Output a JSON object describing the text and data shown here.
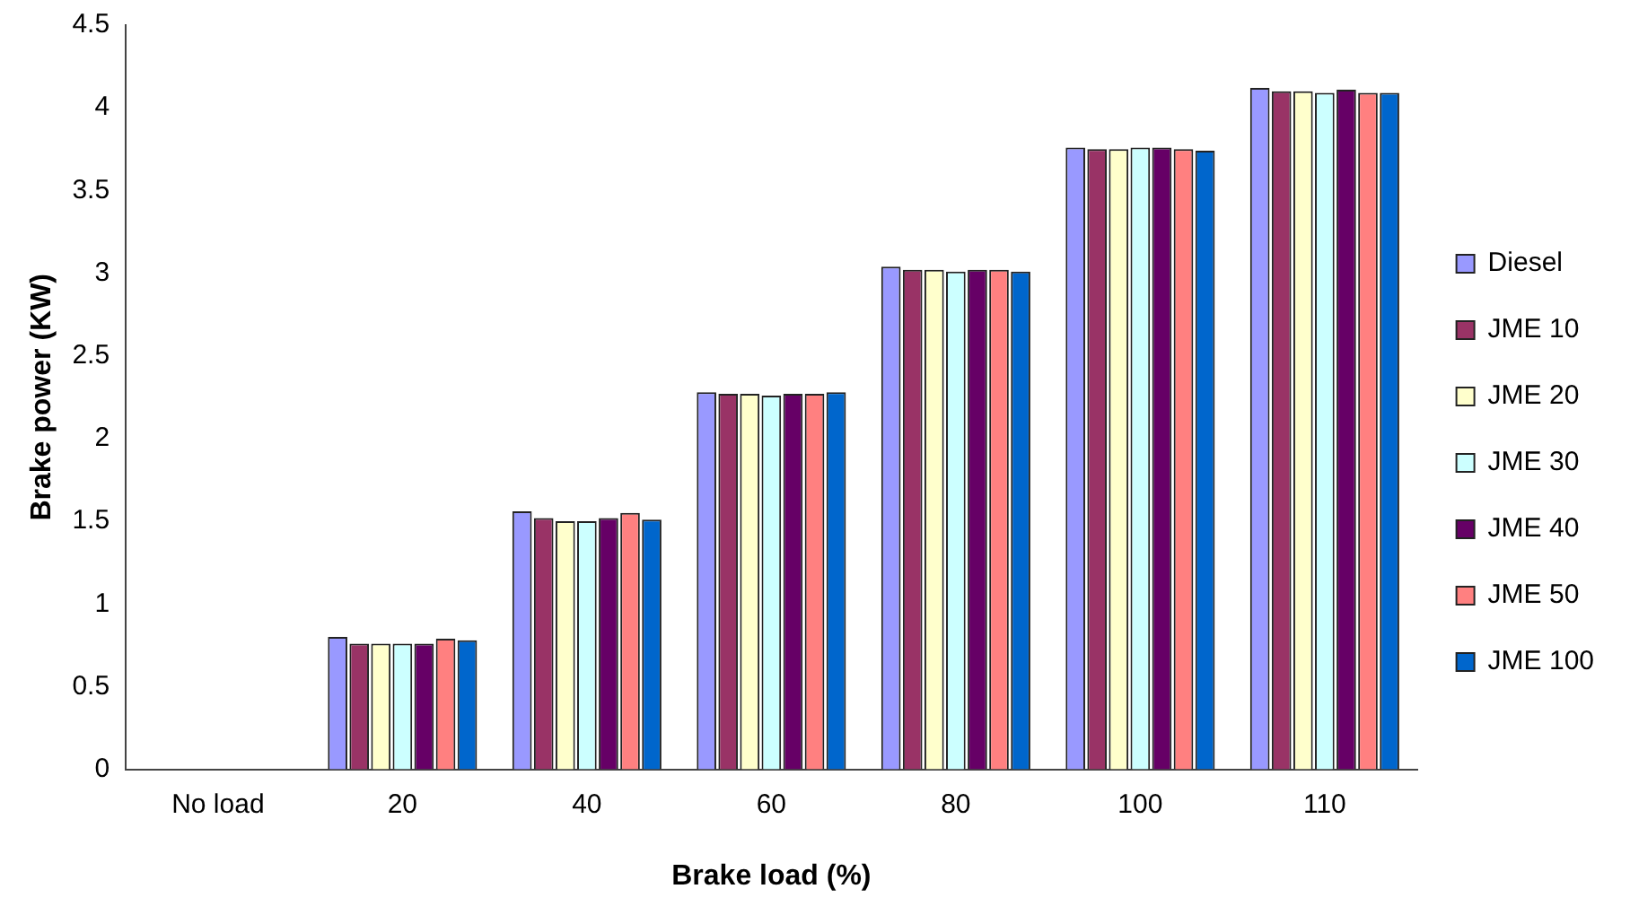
{
  "chart_data": {
    "type": "bar",
    "xlabel": "Brake load (%)",
    "ylabel": "Brake power (KW)",
    "categories": [
      "No load",
      "20",
      "40",
      "60",
      "80",
      "100",
      "110"
    ],
    "series": [
      {
        "name": "Diesel",
        "color": "#9999ff",
        "values": [
          0,
          0.8,
          1.56,
          2.28,
          3.04,
          3.76,
          4.12
        ]
      },
      {
        "name": "JME 10",
        "color": "#993366",
        "values": [
          0,
          0.76,
          1.52,
          2.27,
          3.02,
          3.75,
          4.1
        ]
      },
      {
        "name": "JME 20",
        "color": "#ffffcc",
        "values": [
          0,
          0.76,
          1.5,
          2.27,
          3.02,
          3.75,
          4.1
        ]
      },
      {
        "name": "JME 30",
        "color": "#ccffff",
        "values": [
          0,
          0.76,
          1.5,
          2.26,
          3.01,
          3.76,
          4.09
        ]
      },
      {
        "name": "JME 40",
        "color": "#660066",
        "values": [
          0,
          0.76,
          1.52,
          2.27,
          3.02,
          3.76,
          4.11
        ]
      },
      {
        "name": "JME 50",
        "color": "#ff8080",
        "values": [
          0,
          0.79,
          1.55,
          2.27,
          3.02,
          3.75,
          4.09
        ]
      },
      {
        "name": "JME 100",
        "color": "#0066cc",
        "values": [
          0,
          0.78,
          1.51,
          2.28,
          3.01,
          3.74,
          4.09
        ]
      }
    ],
    "ylim": [
      0,
      4.5
    ],
    "yticks": [
      0,
      0.5,
      1,
      1.5,
      2,
      2.5,
      3,
      3.5,
      4,
      4.5
    ],
    "grid": false,
    "legend": "right"
  }
}
